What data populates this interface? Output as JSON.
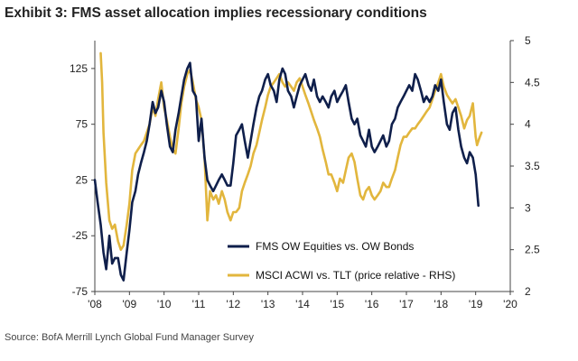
{
  "exhibit": {
    "title": "Exhibit 3: FMS asset allocation implies recessionary conditions",
    "source": "Source:  BofA Merrill Lynch Global Fund Manager Survey"
  },
  "chart_data": {
    "type": "line",
    "title": "Exhibit 3: FMS asset allocation implies recessionary conditions",
    "x_ticks": [
      "'08",
      "'09",
      "'10",
      "'11",
      "'12",
      "'13",
      "'14",
      "'15",
      "'16",
      "'17",
      "'18",
      "'19",
      "'20"
    ],
    "x_range": [
      2008.0,
      2020.0
    ],
    "y_left": {
      "ticks": [
        125,
        75,
        25,
        -25,
        -75
      ],
      "range": [
        -75,
        150
      ]
    },
    "y_right": {
      "ticks": [
        5,
        4.5,
        4,
        3.5,
        3,
        2.5,
        2
      ],
      "range": [
        2,
        5
      ]
    },
    "grid": false,
    "legend_position": "bottom-center",
    "series": [
      {
        "name": "FMS OW Equities vs. OW Bonds",
        "axis": "left",
        "color": "#0f1f4b",
        "points": [
          [
            2008.0,
            25
          ],
          [
            2008.08,
            5
          ],
          [
            2008.17,
            -15
          ],
          [
            2008.25,
            -40
          ],
          [
            2008.33,
            -55
          ],
          [
            2008.42,
            -25
          ],
          [
            2008.5,
            -50
          ],
          [
            2008.58,
            -45
          ],
          [
            2008.67,
            -45
          ],
          [
            2008.75,
            -60
          ],
          [
            2008.83,
            -65
          ],
          [
            2008.92,
            -40
          ],
          [
            2009.0,
            -20
          ],
          [
            2009.08,
            5
          ],
          [
            2009.17,
            15
          ],
          [
            2009.25,
            30
          ],
          [
            2009.33,
            40
          ],
          [
            2009.42,
            50
          ],
          [
            2009.5,
            60
          ],
          [
            2009.58,
            75
          ],
          [
            2009.67,
            95
          ],
          [
            2009.75,
            85
          ],
          [
            2009.83,
            90
          ],
          [
            2009.92,
            105
          ],
          [
            2010.0,
            95
          ],
          [
            2010.08,
            75
          ],
          [
            2010.17,
            55
          ],
          [
            2010.25,
            50
          ],
          [
            2010.33,
            70
          ],
          [
            2010.42,
            85
          ],
          [
            2010.5,
            100
          ],
          [
            2010.58,
            115
          ],
          [
            2010.67,
            125
          ],
          [
            2010.75,
            130
          ],
          [
            2010.83,
            105
          ],
          [
            2010.92,
            100
          ],
          [
            2011.0,
            60
          ],
          [
            2011.08,
            80
          ],
          [
            2011.17,
            45
          ],
          [
            2011.25,
            25
          ],
          [
            2011.33,
            20
          ],
          [
            2011.42,
            15
          ],
          [
            2011.5,
            20
          ],
          [
            2011.58,
            25
          ],
          [
            2011.67,
            30
          ],
          [
            2011.75,
            25
          ],
          [
            2011.83,
            20
          ],
          [
            2011.92,
            20
          ],
          [
            2012.0,
            40
          ],
          [
            2012.08,
            65
          ],
          [
            2012.17,
            70
          ],
          [
            2012.25,
            75
          ],
          [
            2012.33,
            60
          ],
          [
            2012.42,
            45
          ],
          [
            2012.5,
            60
          ],
          [
            2012.58,
            75
          ],
          [
            2012.67,
            90
          ],
          [
            2012.75,
            100
          ],
          [
            2012.83,
            105
          ],
          [
            2012.92,
            115
          ],
          [
            2013.0,
            120
          ],
          [
            2013.08,
            110
          ],
          [
            2013.17,
            105
          ],
          [
            2013.25,
            95
          ],
          [
            2013.33,
            115
          ],
          [
            2013.42,
            125
          ],
          [
            2013.5,
            120
          ],
          [
            2013.58,
            105
          ],
          [
            2013.67,
            100
          ],
          [
            2013.75,
            90
          ],
          [
            2013.83,
            100
          ],
          [
            2013.92,
            110
          ],
          [
            2014.0,
            115
          ],
          [
            2014.08,
            120
          ],
          [
            2014.17,
            110
          ],
          [
            2014.25,
            105
          ],
          [
            2014.33,
            115
          ],
          [
            2014.42,
            100
          ],
          [
            2014.5,
            95
          ],
          [
            2014.58,
            100
          ],
          [
            2014.67,
            95
          ],
          [
            2014.75,
            90
          ],
          [
            2014.83,
            100
          ],
          [
            2014.92,
            105
          ],
          [
            2015.0,
            95
          ],
          [
            2015.08,
            100
          ],
          [
            2015.17,
            105
          ],
          [
            2015.25,
            110
          ],
          [
            2015.33,
            95
          ],
          [
            2015.42,
            80
          ],
          [
            2015.5,
            75
          ],
          [
            2015.58,
            80
          ],
          [
            2015.67,
            65
          ],
          [
            2015.75,
            60
          ],
          [
            2015.83,
            55
          ],
          [
            2015.92,
            70
          ],
          [
            2016.0,
            55
          ],
          [
            2016.08,
            50
          ],
          [
            2016.17,
            55
          ],
          [
            2016.25,
            60
          ],
          [
            2016.33,
            65
          ],
          [
            2016.42,
            55
          ],
          [
            2016.5,
            60
          ],
          [
            2016.58,
            75
          ],
          [
            2016.67,
            80
          ],
          [
            2016.75,
            90
          ],
          [
            2016.83,
            95
          ],
          [
            2016.92,
            100
          ],
          [
            2017.0,
            105
          ],
          [
            2017.08,
            110
          ],
          [
            2017.17,
            105
          ],
          [
            2017.25,
            120
          ],
          [
            2017.33,
            115
          ],
          [
            2017.42,
            105
          ],
          [
            2017.5,
            95
          ],
          [
            2017.58,
            100
          ],
          [
            2017.67,
            95
          ],
          [
            2017.75,
            100
          ],
          [
            2017.83,
            110
          ],
          [
            2017.92,
            105
          ],
          [
            2018.0,
            115
          ],
          [
            2018.08,
            95
          ],
          [
            2018.17,
            75
          ],
          [
            2018.25,
            70
          ],
          [
            2018.33,
            85
          ],
          [
            2018.42,
            90
          ],
          [
            2018.5,
            70
          ],
          [
            2018.58,
            55
          ],
          [
            2018.67,
            45
          ],
          [
            2018.75,
            40
          ],
          [
            2018.83,
            50
          ],
          [
            2018.92,
            45
          ],
          [
            2019.0,
            30
          ],
          [
            2019.08,
            2
          ]
        ]
      },
      {
        "name": "MSCI ACWI vs. TLT (price relative - RHS)",
        "axis": "right",
        "color": "#e2b63d",
        "points": [
          [
            2008.17,
            4.85
          ],
          [
            2008.21,
            4.5
          ],
          [
            2008.25,
            3.9
          ],
          [
            2008.33,
            3.3
          ],
          [
            2008.42,
            2.85
          ],
          [
            2008.5,
            2.75
          ],
          [
            2008.58,
            2.8
          ],
          [
            2008.67,
            2.6
          ],
          [
            2008.75,
            2.5
          ],
          [
            2008.83,
            2.55
          ],
          [
            2008.92,
            2.8
          ],
          [
            2009.0,
            3.05
          ],
          [
            2009.08,
            3.45
          ],
          [
            2009.17,
            3.65
          ],
          [
            2009.25,
            3.7
          ],
          [
            2009.33,
            3.75
          ],
          [
            2009.42,
            3.8
          ],
          [
            2009.5,
            3.9
          ],
          [
            2009.58,
            4.0
          ],
          [
            2009.67,
            4.2
          ],
          [
            2009.75,
            4.1
          ],
          [
            2009.83,
            4.3
          ],
          [
            2009.92,
            4.5
          ],
          [
            2010.0,
            4.2
          ],
          [
            2010.08,
            4.05
          ],
          [
            2010.17,
            3.85
          ],
          [
            2010.25,
            3.7
          ],
          [
            2010.33,
            3.65
          ],
          [
            2010.42,
            3.95
          ],
          [
            2010.5,
            4.25
          ],
          [
            2010.58,
            4.45
          ],
          [
            2010.67,
            4.6
          ],
          [
            2010.75,
            4.65
          ],
          [
            2010.83,
            4.5
          ],
          [
            2010.92,
            4.3
          ],
          [
            2011.0,
            4.2
          ],
          [
            2011.08,
            4.05
          ],
          [
            2011.17,
            3.6
          ],
          [
            2011.25,
            2.85
          ],
          [
            2011.33,
            3.2
          ],
          [
            2011.42,
            3.1
          ],
          [
            2011.5,
            3.15
          ],
          [
            2011.58,
            3.05
          ],
          [
            2011.67,
            3.2
          ],
          [
            2011.75,
            3.1
          ],
          [
            2011.83,
            2.95
          ],
          [
            2011.92,
            2.85
          ],
          [
            2012.0,
            2.95
          ],
          [
            2012.08,
            2.95
          ],
          [
            2012.17,
            3.0
          ],
          [
            2012.25,
            3.2
          ],
          [
            2012.33,
            3.3
          ],
          [
            2012.42,
            3.4
          ],
          [
            2012.5,
            3.5
          ],
          [
            2012.58,
            3.65
          ],
          [
            2012.67,
            3.75
          ],
          [
            2012.75,
            3.9
          ],
          [
            2012.83,
            4.05
          ],
          [
            2012.92,
            4.2
          ],
          [
            2013.0,
            4.35
          ],
          [
            2013.08,
            4.45
          ],
          [
            2013.17,
            4.5
          ],
          [
            2013.25,
            4.55
          ],
          [
            2013.33,
            4.6
          ],
          [
            2013.42,
            4.5
          ],
          [
            2013.5,
            4.45
          ],
          [
            2013.58,
            4.5
          ],
          [
            2013.67,
            4.45
          ],
          [
            2013.75,
            4.4
          ],
          [
            2013.83,
            4.5
          ],
          [
            2013.92,
            4.55
          ],
          [
            2014.0,
            4.45
          ],
          [
            2014.08,
            4.35
          ],
          [
            2014.17,
            4.25
          ],
          [
            2014.25,
            4.15
          ],
          [
            2014.33,
            4.05
          ],
          [
            2014.42,
            3.95
          ],
          [
            2014.5,
            3.85
          ],
          [
            2014.58,
            3.7
          ],
          [
            2014.67,
            3.55
          ],
          [
            2014.75,
            3.4
          ],
          [
            2014.83,
            3.4
          ],
          [
            2014.92,
            3.3
          ],
          [
            2015.0,
            3.2
          ],
          [
            2015.08,
            3.35
          ],
          [
            2015.17,
            3.3
          ],
          [
            2015.25,
            3.45
          ],
          [
            2015.33,
            3.6
          ],
          [
            2015.42,
            3.65
          ],
          [
            2015.5,
            3.55
          ],
          [
            2015.58,
            3.35
          ],
          [
            2015.67,
            3.15
          ],
          [
            2015.75,
            3.1
          ],
          [
            2015.83,
            3.2
          ],
          [
            2015.92,
            3.25
          ],
          [
            2016.0,
            3.15
          ],
          [
            2016.08,
            3.1
          ],
          [
            2016.17,
            3.15
          ],
          [
            2016.25,
            3.2
          ],
          [
            2016.33,
            3.3
          ],
          [
            2016.42,
            3.25
          ],
          [
            2016.5,
            3.25
          ],
          [
            2016.58,
            3.35
          ],
          [
            2016.67,
            3.45
          ],
          [
            2016.75,
            3.6
          ],
          [
            2016.83,
            3.75
          ],
          [
            2016.92,
            3.85
          ],
          [
            2017.0,
            3.85
          ],
          [
            2017.08,
            3.9
          ],
          [
            2017.17,
            3.95
          ],
          [
            2017.25,
            3.95
          ],
          [
            2017.33,
            4.0
          ],
          [
            2017.42,
            4.05
          ],
          [
            2017.5,
            4.1
          ],
          [
            2017.58,
            4.15
          ],
          [
            2017.67,
            4.2
          ],
          [
            2017.75,
            4.3
          ],
          [
            2017.83,
            4.4
          ],
          [
            2017.92,
            4.5
          ],
          [
            2018.0,
            4.6
          ],
          [
            2018.08,
            4.45
          ],
          [
            2018.17,
            4.35
          ],
          [
            2018.25,
            4.3
          ],
          [
            2018.33,
            4.25
          ],
          [
            2018.42,
            4.3
          ],
          [
            2018.5,
            4.2
          ],
          [
            2018.58,
            4.1
          ],
          [
            2018.67,
            3.95
          ],
          [
            2018.75,
            4.05
          ],
          [
            2018.83,
            4.1
          ],
          [
            2018.92,
            4.25
          ],
          [
            2019.0,
            3.85
          ],
          [
            2019.04,
            3.75
          ],
          [
            2019.08,
            3.8
          ],
          [
            2019.12,
            3.85
          ],
          [
            2019.17,
            3.9
          ]
        ]
      }
    ]
  }
}
